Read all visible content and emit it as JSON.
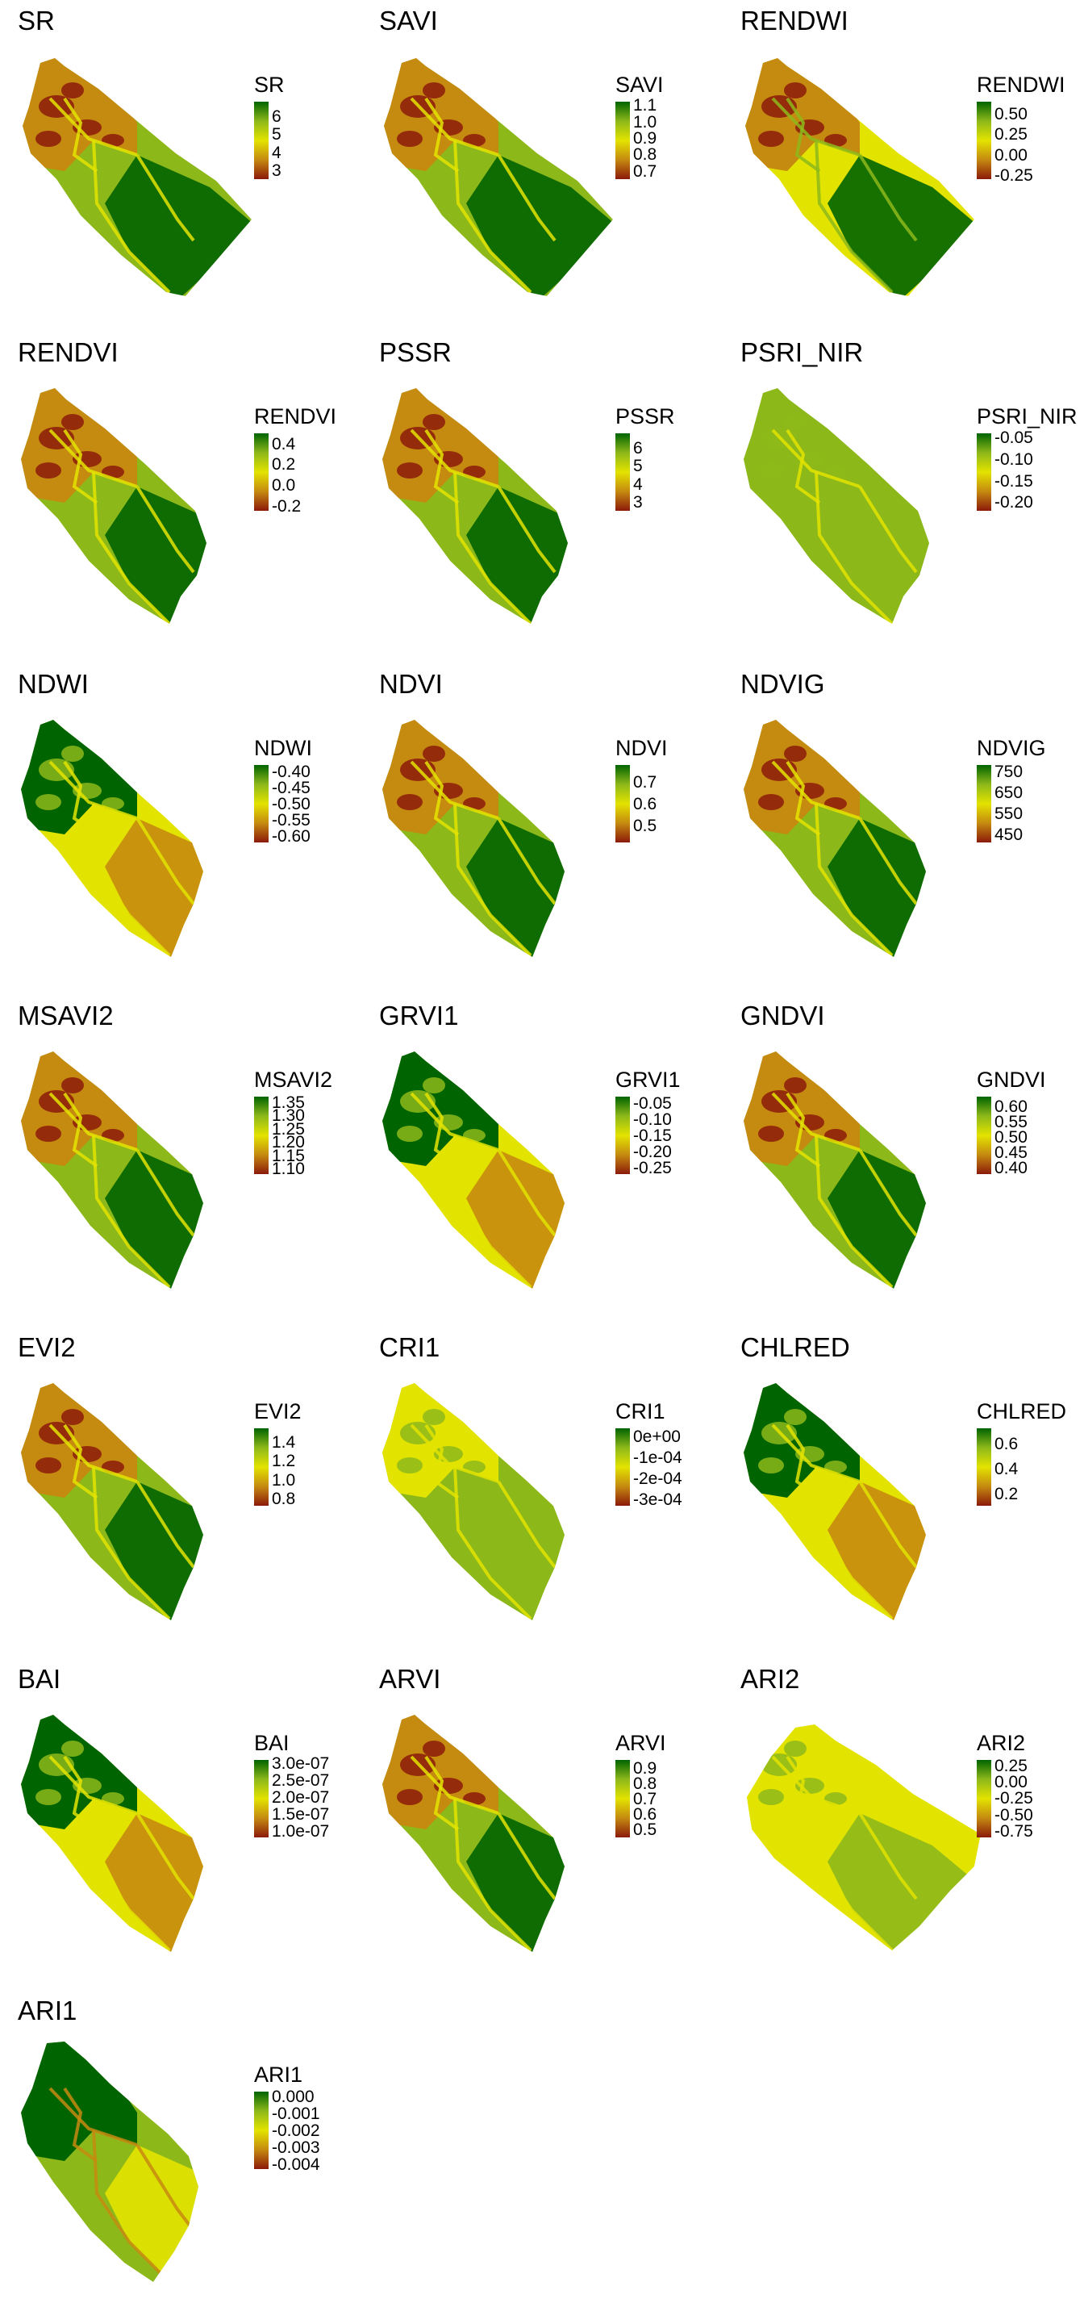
{
  "colors": {
    "high": "#006400",
    "mid_high": "#8db81a",
    "mid": "#e3e300",
    "mid_low": "#c58a10",
    "low": "#8b1a0a"
  },
  "chart_data": [
    {
      "type": "heatmap",
      "title": "SR",
      "legend_title": "SR",
      "ticks": [
        "6",
        "5",
        "4",
        "3"
      ],
      "legend_range": [
        2.5,
        6.8
      ],
      "tick_values": [
        6,
        5,
        4,
        3
      ],
      "pattern": "standard",
      "shape": "A"
    },
    {
      "type": "heatmap",
      "title": "SAVI",
      "legend_title": "SAVI",
      "ticks": [
        "1.1",
        "1.0",
        "0.9",
        "0.8",
        "0.7"
      ],
      "legend_range": [
        0.65,
        1.12
      ],
      "tick_values": [
        1.1,
        1.0,
        0.9,
        0.8,
        0.7
      ],
      "pattern": "standard",
      "shape": "A"
    },
    {
      "type": "heatmap",
      "title": "RENDWI",
      "legend_title": "RENDWI",
      "ticks": [
        "0.50",
        "0.25",
        "0.00",
        "-0.25"
      ],
      "legend_range": [
        -0.3,
        0.65
      ],
      "tick_values": [
        0.5,
        0.25,
        0.0,
        -0.25
      ],
      "pattern": "standard_warm",
      "shape": "A"
    },
    {
      "type": "heatmap",
      "title": "RENDVI",
      "legend_title": "RENDVI",
      "ticks": [
        "0.4",
        "0.2",
        "0.0",
        "-0.2"
      ],
      "legend_range": [
        -0.25,
        0.5
      ],
      "tick_values": [
        0.4,
        0.2,
        0.0,
        -0.2
      ],
      "pattern": "standard",
      "shape": "B"
    },
    {
      "type": "heatmap",
      "title": "PSSR",
      "legend_title": "PSSR",
      "ticks": [
        "6",
        "5",
        "4",
        "3"
      ],
      "legend_range": [
        2.5,
        6.8
      ],
      "tick_values": [
        6,
        5,
        4,
        3
      ],
      "pattern": "standard",
      "shape": "B"
    },
    {
      "type": "heatmap",
      "title": "PSRI_NIR",
      "legend_title": "PSRI_NIR",
      "ticks": [
        "-0.05",
        "-0.10",
        "-0.15",
        "-0.20"
      ],
      "legend_range": [
        -0.22,
        -0.04
      ],
      "tick_values": [
        -0.05,
        -0.1,
        -0.15,
        -0.2
      ],
      "pattern": "green",
      "shape": "B"
    },
    {
      "type": "heatmap",
      "title": "NDWI",
      "legend_title": "NDWI",
      "ticks": [
        "-0.40",
        "-0.45",
        "-0.50",
        "-0.55",
        "-0.60"
      ],
      "legend_range": [
        -0.62,
        -0.38
      ],
      "tick_values": [
        -0.4,
        -0.45,
        -0.5,
        -0.55,
        -0.6
      ],
      "pattern": "inverse",
      "shape": "C"
    },
    {
      "type": "heatmap",
      "title": "NDVI",
      "legend_title": "NDVI",
      "ticks": [
        "0.7",
        "0.6",
        "0.5"
      ],
      "legend_range": [
        0.42,
        0.78
      ],
      "tick_values": [
        0.7,
        0.6,
        0.5
      ],
      "pattern": "standard",
      "shape": "C"
    },
    {
      "type": "heatmap",
      "title": "NDVIG",
      "legend_title": "NDVIG",
      "ticks": [
        "750",
        "650",
        "550",
        "450"
      ],
      "legend_range": [
        410,
        780
      ],
      "tick_values": [
        750,
        650,
        550,
        450
      ],
      "pattern": "standard",
      "shape": "C"
    },
    {
      "type": "heatmap",
      "title": "MSAVI2",
      "legend_title": "MSAVI2",
      "ticks": [
        "1.35",
        "1.30",
        "1.25",
        "1.20",
        "1.15",
        "1.10"
      ],
      "legend_range": [
        1.08,
        1.37
      ],
      "tick_values": [
        1.35,
        1.3,
        1.25,
        1.2,
        1.15,
        1.1
      ],
      "pattern": "standard",
      "shape": "C"
    },
    {
      "type": "heatmap",
      "title": "GRVI1",
      "legend_title": "GRVI1",
      "ticks": [
        "-0.05",
        "-0.10",
        "-0.15",
        "-0.20",
        "-0.25"
      ],
      "legend_range": [
        -0.27,
        -0.03
      ],
      "tick_values": [
        -0.05,
        -0.1,
        -0.15,
        -0.2,
        -0.25
      ],
      "pattern": "inverse",
      "shape": "C"
    },
    {
      "type": "heatmap",
      "title": "GNDVI",
      "legend_title": "GNDVI",
      "ticks": [
        "0.60",
        "0.55",
        "0.50",
        "0.45",
        "0.40"
      ],
      "legend_range": [
        0.38,
        0.63
      ],
      "tick_values": [
        0.6,
        0.55,
        0.5,
        0.45,
        0.4
      ],
      "pattern": "standard",
      "shape": "C"
    },
    {
      "type": "heatmap",
      "title": "EVI2",
      "legend_title": "EVI2",
      "ticks": [
        "1.4",
        "1.2",
        "1.0",
        "0.8"
      ],
      "legend_range": [
        0.72,
        1.55
      ],
      "tick_values": [
        1.4,
        1.2,
        1.0,
        0.8
      ],
      "pattern": "standard",
      "shape": "C"
    },
    {
      "type": "heatmap",
      "title": "CRI1",
      "legend_title": "CRI1",
      "ticks": [
        "0e+00",
        "-1e-04",
        "-2e-04",
        "-3e-04"
      ],
      "legend_range": [
        -0.00033,
        4e-05
      ],
      "tick_values": [
        0,
        -0.0001,
        -0.0002,
        -0.0003
      ],
      "pattern": "greenish",
      "shape": "C"
    },
    {
      "type": "heatmap",
      "title": "CHLRED",
      "legend_title": "CHLRED",
      "ticks": [
        "0.6",
        "0.4",
        "0.2"
      ],
      "legend_range": [
        0.1,
        0.72
      ],
      "tick_values": [
        0.6,
        0.4,
        0.2
      ],
      "pattern": "inverse",
      "shape": "C"
    },
    {
      "type": "heatmap",
      "title": "BAI",
      "legend_title": "BAI",
      "ticks": [
        "3.0e-07",
        "2.5e-07",
        "2.0e-07",
        "1.5e-07",
        "1.0e-07"
      ],
      "legend_range": [
        8e-08,
        3.1e-07
      ],
      "tick_values": [
        3e-07,
        2.5e-07,
        2e-07,
        1.5e-07,
        1e-07
      ],
      "pattern": "inverse",
      "shape": "C"
    },
    {
      "type": "heatmap",
      "title": "ARVI",
      "legend_title": "ARVI",
      "ticks": [
        "0.9",
        "0.8",
        "0.7",
        "0.6",
        "0.5"
      ],
      "legend_range": [
        0.45,
        0.95
      ],
      "tick_values": [
        0.9,
        0.8,
        0.7,
        0.6,
        0.5
      ],
      "pattern": "standard",
      "shape": "C"
    },
    {
      "type": "heatmap",
      "title": "ARI2",
      "legend_title": "ARI2",
      "ticks": [
        "0.25",
        "0.00",
        "-0.25",
        "-0.50",
        "-0.75"
      ],
      "legend_range": [
        -0.85,
        0.33
      ],
      "tick_values": [
        0.25,
        0,
        -0.25,
        -0.5,
        -0.75
      ],
      "pattern": "yellowish",
      "shape": "D"
    },
    {
      "type": "heatmap",
      "title": "ARI1",
      "legend_title": "ARI1",
      "ticks": [
        "0.000",
        "-0.001",
        "-0.002",
        "-0.003",
        "-0.004"
      ],
      "legend_range": [
        -0.0043,
        0.0003
      ],
      "tick_values": [
        0,
        -0.001,
        -0.002,
        -0.003,
        -0.004
      ],
      "pattern": "ari1",
      "shape": "E"
    }
  ]
}
